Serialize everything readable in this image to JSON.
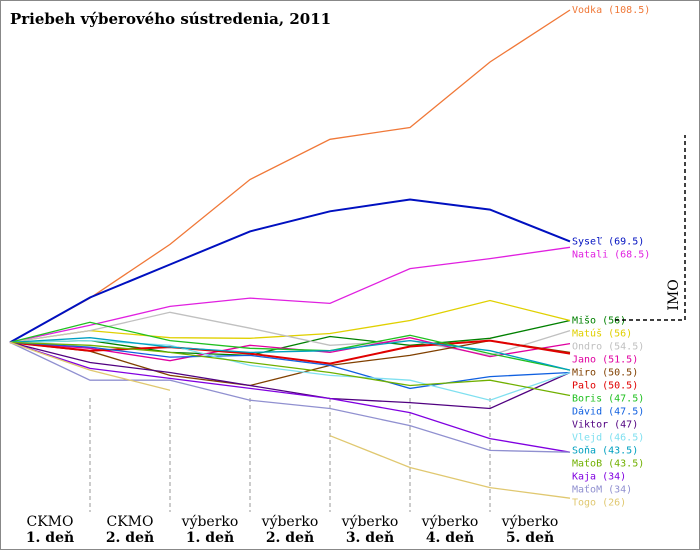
{
  "chart_data": {
    "type": "line",
    "title": "Priebeh výberového sústredenia, 2011",
    "categories": [
      null,
      [
        "CKMO",
        "1. deň"
      ],
      [
        "CKMO",
        "2. deň"
      ],
      [
        "výberko",
        "1. deň"
      ],
      [
        "výberko",
        "2. deň"
      ],
      [
        "výberko",
        "3. deň"
      ],
      [
        "výberko",
        "4. deň"
      ],
      [
        "výberko",
        "5. deň"
      ]
    ],
    "ylim": [
      -35,
      58
    ],
    "annotation": "IMO",
    "series": [
      {
        "name": "Vodka (108.5)",
        "color": "#f07838",
        "values": [
          0,
          7.5,
          16.6,
          27.6,
          34.4,
          36.4,
          47.5,
          56.3
        ]
      },
      {
        "name": "Syseľ (69.5)",
        "color": "#0010c0",
        "values": [
          0,
          7.6,
          13.2,
          18.8,
          22.2,
          24.2,
          22.5,
          17.1
        ]
      },
      {
        "name": "Natali (68.5)",
        "color": "#e020e0",
        "values": [
          0,
          2.9,
          6.1,
          7.5,
          6.6,
          12.5,
          14.2,
          16.1
        ]
      },
      {
        "name": "Mišo (56)",
        "color": "#008000",
        "values": [
          0,
          0.3,
          -1.7,
          -2.2,
          1.0,
          -0.5,
          0.7,
          3.7
        ]
      },
      {
        "name": "Matúš (56)",
        "color": "#e0d000",
        "values": [
          0,
          2.0,
          0.8,
          0.7,
          1.5,
          3.7,
          7.1,
          3.7
        ]
      },
      {
        "name": "Ondro (54.5)",
        "color": "#c0c0c0",
        "values": [
          0,
          2.0,
          5.1,
          2.4,
          -0.5,
          0.3,
          -2.2,
          2.0
        ]
      },
      {
        "name": "Jano (51.5)",
        "color": "#e000a0",
        "values": [
          0,
          -1.0,
          -3.1,
          -0.5,
          -1.7,
          0.8,
          -2.4,
          -0.2
        ]
      },
      {
        "name": "Miro (50.5)",
        "color": "#804000",
        "values": [
          0,
          -1.5,
          -5.6,
          -7.3,
          -3.9,
          -2.2,
          0.3,
          -1.7
        ]
      },
      {
        "name": "Palo (50.5)",
        "color": "#e00000",
        "values": [
          0,
          -1.4,
          -0.8,
          -1.9,
          -3.6,
          -0.7,
          0.3,
          -1.9
        ]
      },
      {
        "name": "Boris (47.5)",
        "color": "#20c020",
        "values": [
          0,
          3.4,
          0.3,
          -1.0,
          -1.4,
          1.2,
          -1.9,
          -4.7
        ]
      },
      {
        "name": "Dávid (47.5)",
        "color": "#1060e0",
        "values": [
          0,
          -0.8,
          -2.5,
          -2.2,
          -3.9,
          -7.8,
          -5.8,
          -5.1
        ]
      },
      {
        "name": "Viktor (47)",
        "color": "#500080",
        "values": [
          0,
          -3.4,
          -5.1,
          -7.3,
          -9.5,
          -10.2,
          -11.2,
          -5.1
        ]
      },
      {
        "name": "Vlejd (46.5)",
        "color": "#80e0f0",
        "values": [
          0,
          0.3,
          -0.5,
          -3.9,
          -5.6,
          -6.4,
          -9.8,
          -5.1
        ]
      },
      {
        "name": "Soňa (43.5)",
        "color": "#00a0c0",
        "values": [
          0,
          0.8,
          -0.8,
          -1.7,
          -1.4,
          0.3,
          -1.4,
          -4.7
        ]
      },
      {
        "name": "MaťoB (43.5)",
        "color": "#70b000",
        "values": [
          0,
          -0.5,
          -1.7,
          -3.4,
          -5.1,
          -7.3,
          -6.4,
          -9.0
        ]
      },
      {
        "name": "Kaja (34)",
        "color": "#8000e0",
        "values": [
          0,
          -4.4,
          -6.1,
          -7.8,
          -9.5,
          -11.9,
          -16.3,
          -18.6
        ]
      },
      {
        "name": "MaťoM (34)",
        "color": "#9090d0",
        "values": [
          0,
          -6.4,
          -6.4,
          -9.8,
          -11.2,
          -14.1,
          -18.3,
          -18.6
        ]
      },
      {
        "name": "Togo (26)",
        "color": "#e0c870",
        "values": [
          0,
          -4.7,
          -8.1,
          null,
          -15.8,
          -21.2,
          -24.6,
          -26.4
        ]
      }
    ]
  }
}
